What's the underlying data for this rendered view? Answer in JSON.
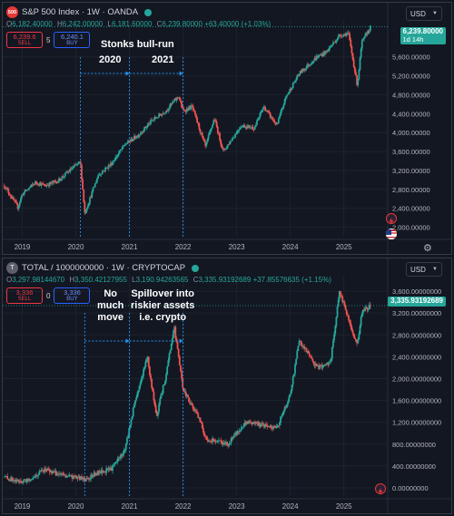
{
  "top": {
    "logo": "500",
    "title": "S&P 500 Index · 1W · OANDA",
    "ohlc": {
      "o_label": "O",
      "o": "6,182.40000",
      "h_label": "H",
      "h": "6,242.00000",
      "l_label": "L",
      "l": "6,181.60000",
      "c_label": "C",
      "c": "6,239.80000",
      "change": "+63.40000 (+1.03%)"
    },
    "sell": {
      "price": "6,239.6",
      "label": "SELL"
    },
    "spread": "5",
    "buy": {
      "price": "6,240.1",
      "label": "BUY"
    },
    "currency": "USD",
    "last_price": "6,239.80000",
    "countdown": "1d 14h",
    "annotations": {
      "headline": "Stonks bull-run",
      "y2020": "2020",
      "y2021": "2021"
    },
    "y_ticks": [
      "5,600.00000",
      "5,200.00000",
      "4,800.00000",
      "4,400.00000",
      "4,000.00000",
      "3,600.00000",
      "3,200.00000",
      "2,800.00000",
      "2,400.00000",
      "2,000.00000"
    ],
    "x_ticks": [
      "2019",
      "2020",
      "2021",
      "2022",
      "2023",
      "2024",
      "2025"
    ],
    "colors": {
      "up": "#26a69a",
      "down": "#ef5350",
      "marker": "#2196f3"
    }
  },
  "bottom": {
    "logo": "T",
    "title": "TOTAL / 1000000000 · 1W · CRYPTOCAP",
    "ohlc": {
      "o_label": "O",
      "o": "3,297.98144670",
      "h_label": "H",
      "h": "3,350.42127955",
      "l_label": "L",
      "l": "3,190.94263565",
      "c_label": "C",
      "c": "3,335.93192689",
      "change": "+37.85576635 (+1.15%)"
    },
    "sell": {
      "price": "3,336",
      "label": "SELL"
    },
    "spread": "0",
    "buy": {
      "price": "3,336",
      "label": "BUY"
    },
    "currency": "USD",
    "last_price": "3,335.93192689",
    "annotations": {
      "no_move_1": "No",
      "no_move_2": "much",
      "no_move_3": "move",
      "spill_1": "Spillover into",
      "spill_2": "riskier assets",
      "spill_3": "i.e. crypto"
    },
    "y_ticks": [
      "3,600.00000000",
      "3,200.00000000",
      "2,800.00000000",
      "2,400.00000000",
      "2,000.00000000",
      "1,600.00000000",
      "1,200.00000000",
      "800.00000000",
      "400.00000000",
      "0.00000000"
    ],
    "x_ticks": [
      "2019",
      "2020",
      "2021",
      "2022",
      "2023",
      "2024",
      "2025"
    ]
  },
  "chart_data": [
    {
      "type": "candlestick",
      "title": "S&P 500 Index · 1W · OANDA",
      "ylim": [
        1800,
        6400
      ],
      "x": [
        "2018-09",
        "2018-12",
        "2019-01",
        "2019-04",
        "2019-06",
        "2019-09",
        "2019-12",
        "2020-02",
        "2020-03",
        "2020-06",
        "2020-09",
        "2020-12",
        "2021-03",
        "2021-06",
        "2021-09",
        "2021-12",
        "2022-01",
        "2022-03",
        "2022-06",
        "2022-08",
        "2022-10",
        "2023-02",
        "2023-05",
        "2023-07",
        "2023-10",
        "2023-12",
        "2024-03",
        "2024-07",
        "2024-09",
        "2024-12",
        "2025-02",
        "2025-04",
        "2025-05",
        "2025-07"
      ],
      "close": [
        2880,
        2420,
        2700,
        2950,
        2880,
        2980,
        3230,
        3380,
        2300,
        3100,
        3350,
        3750,
        3950,
        4250,
        4450,
        4770,
        4450,
        4550,
        3700,
        4300,
        3600,
        4150,
        4100,
        4550,
        4150,
        4750,
        5250,
        5600,
        5700,
        6050,
        6100,
        5000,
        5900,
        6240
      ]
    },
    {
      "type": "candlestick",
      "title": "TOTAL / 1000000000 · 1W · CRYPTOCAP",
      "ylim": [
        -150,
        3900
      ],
      "x": [
        "2018-09",
        "2018-12",
        "2019-02",
        "2019-06",
        "2019-09",
        "2019-12",
        "2020-03",
        "2020-06",
        "2020-09",
        "2020-12",
        "2021-02",
        "2021-05",
        "2021-07",
        "2021-09",
        "2021-11",
        "2022-01",
        "2022-05",
        "2022-06",
        "2022-11",
        "2023-03",
        "2023-07",
        "2023-10",
        "2024-01",
        "2024-03",
        "2024-07",
        "2024-10",
        "2024-12",
        "2025-02",
        "2025-04",
        "2025-05",
        "2025-07"
      ],
      "close": [
        200,
        110,
        130,
        340,
        250,
        200,
        160,
        270,
        350,
        700,
        1500,
        2400,
        1300,
        2000,
        2950,
        1800,
        1200,
        900,
        800,
        1200,
        1150,
        1100,
        1700,
        2700,
        2200,
        2300,
        3600,
        3100,
        2600,
        3200,
        3336
      ]
    }
  ]
}
